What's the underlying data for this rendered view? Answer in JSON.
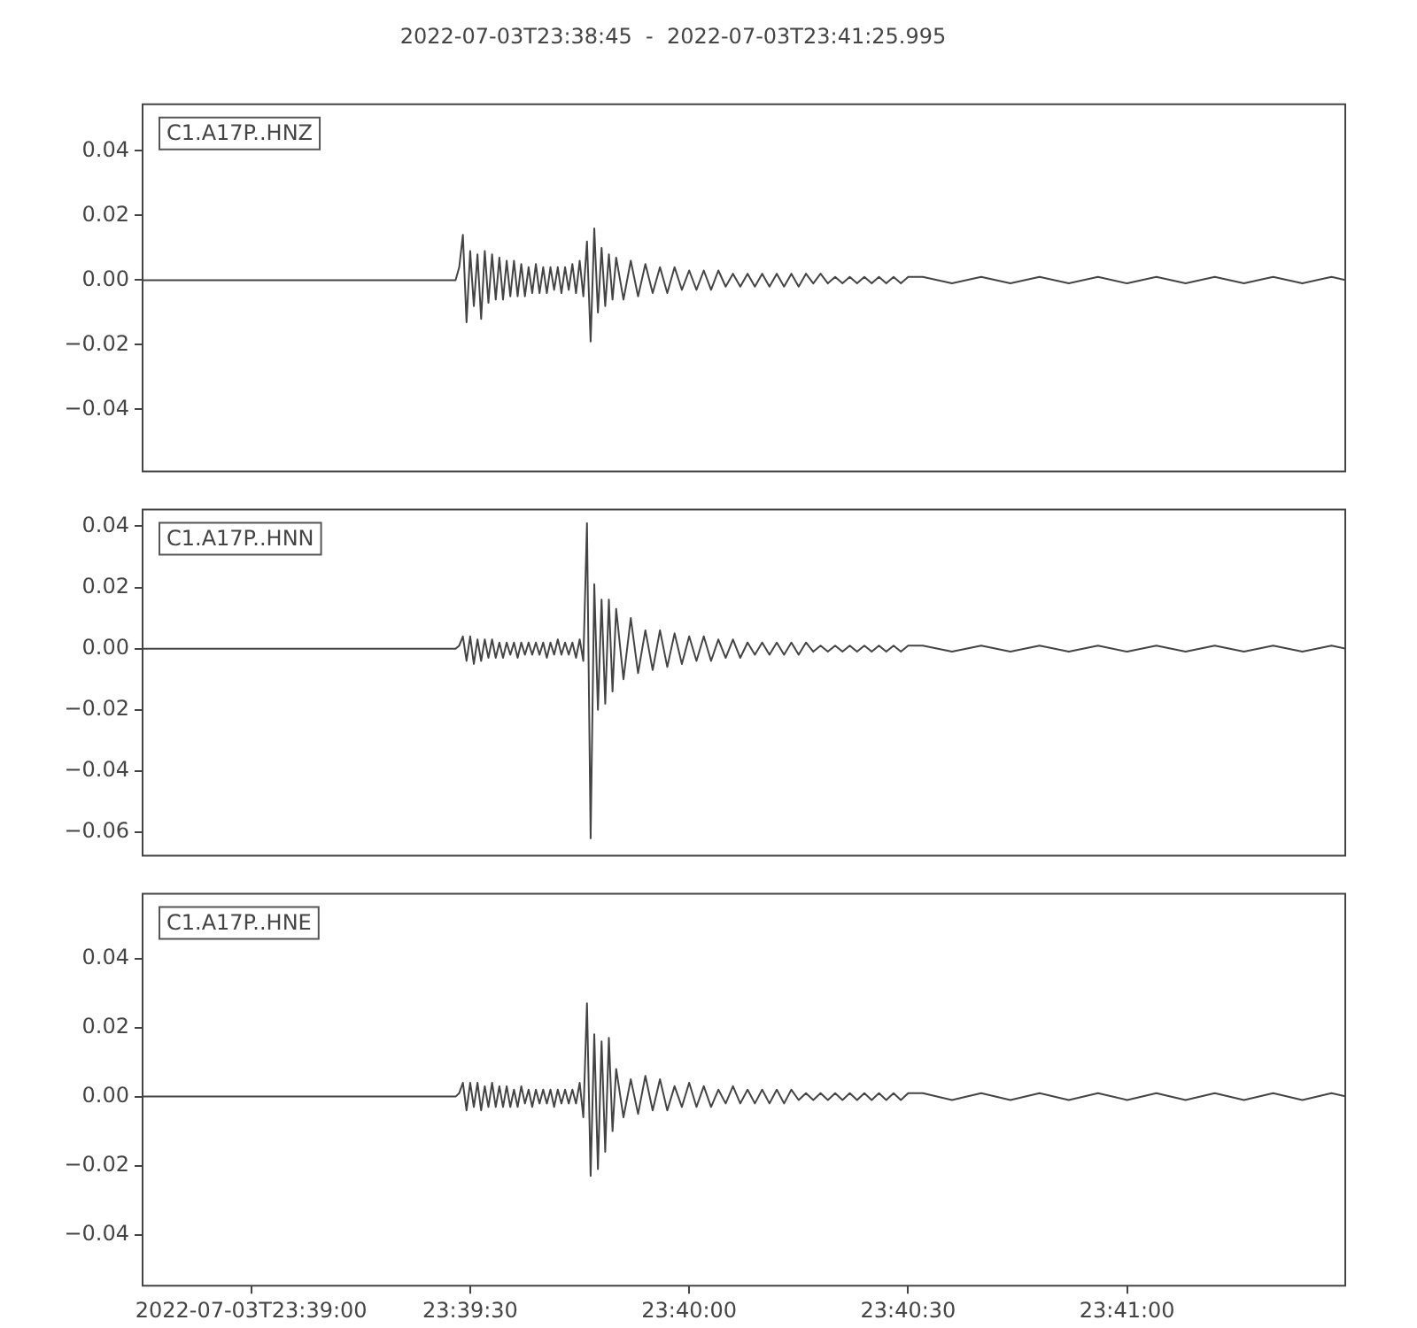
{
  "chart_data": [
    {
      "type": "line",
      "title": "2022-07-03T23:38:45  -  2022-07-03T23:41:25.995",
      "annotations": [
        "C1.A17P..HNZ"
      ],
      "grid": false,
      "legend": false,
      "marker": "none",
      "tick_labels": "y",
      "x": [
        "2022-07-03T23:38:45",
        "2022-07-03T23:39:00",
        "2022-07-03T23:39:15",
        "2022-07-03T23:39:28",
        "2022-07-03T23:39:28.5",
        "2022-07-03T23:39:29",
        "2022-07-03T23:39:29.5",
        "2022-07-03T23:39:30",
        "2022-07-03T23:39:30.5",
        "2022-07-03T23:39:31",
        "2022-07-03T23:39:31.5",
        "2022-07-03T23:39:32",
        "2022-07-03T23:39:32.5",
        "2022-07-03T23:39:33",
        "2022-07-03T23:39:33.5",
        "2022-07-03T23:39:34",
        "2022-07-03T23:39:34.5",
        "2022-07-03T23:39:35",
        "2022-07-03T23:39:35.5",
        "2022-07-03T23:39:36",
        "2022-07-03T23:39:36.5",
        "2022-07-03T23:39:37",
        "2022-07-03T23:39:37.5",
        "2022-07-03T23:39:38",
        "2022-07-03T23:39:38.5",
        "2022-07-03T23:39:39",
        "2022-07-03T23:39:39.5",
        "2022-07-03T23:39:40",
        "2022-07-03T23:39:40.5",
        "2022-07-03T23:39:41",
        "2022-07-03T23:39:41.5",
        "2022-07-03T23:39:42",
        "2022-07-03T23:39:42.5",
        "2022-07-03T23:39:43",
        "2022-07-03T23:39:43.5",
        "2022-07-03T23:39:44",
        "2022-07-03T23:39:44.5",
        "2022-07-03T23:39:45",
        "2022-07-03T23:39:45.5",
        "2022-07-03T23:39:46",
        "2022-07-03T23:39:46.5",
        "2022-07-03T23:39:47",
        "2022-07-03T23:39:47.5",
        "2022-07-03T23:39:48",
        "2022-07-03T23:39:48.5",
        "2022-07-03T23:39:49",
        "2022-07-03T23:39:49.5",
        "2022-07-03T23:39:50",
        "2022-07-03T23:39:51",
        "2022-07-03T23:39:52",
        "2022-07-03T23:39:53",
        "2022-07-03T23:39:54",
        "2022-07-03T23:39:55",
        "2022-07-03T23:39:56",
        "2022-07-03T23:39:57",
        "2022-07-03T23:39:58",
        "2022-07-03T23:39:59",
        "2022-07-03T23:40:00",
        "2022-07-03T23:40:01",
        "2022-07-03T23:40:02",
        "2022-07-03T23:40:03",
        "2022-07-03T23:40:04",
        "2022-07-03T23:40:05",
        "2022-07-03T23:40:06",
        "2022-07-03T23:40:07",
        "2022-07-03T23:40:08",
        "2022-07-03T23:40:09",
        "2022-07-03T23:40:10",
        "2022-07-03T23:40:11",
        "2022-07-03T23:40:12",
        "2022-07-03T23:40:13",
        "2022-07-03T23:40:14",
        "2022-07-03T23:40:15",
        "2022-07-03T23:40:16",
        "2022-07-03T23:40:17",
        "2022-07-03T23:40:18",
        "2022-07-03T23:40:19",
        "2022-07-03T23:40:20",
        "2022-07-03T23:40:21",
        "2022-07-03T23:40:22",
        "2022-07-03T23:40:23",
        "2022-07-03T23:40:24",
        "2022-07-03T23:40:25",
        "2022-07-03T23:40:26",
        "2022-07-03T23:40:27",
        "2022-07-03T23:40:28",
        "2022-07-03T23:40:29",
        "2022-07-03T23:40:30",
        "2022-07-03T23:40:32",
        "2022-07-03T23:40:36",
        "2022-07-03T23:40:40",
        "2022-07-03T23:40:44",
        "2022-07-03T23:40:48",
        "2022-07-03T23:40:52",
        "2022-07-03T23:40:56",
        "2022-07-03T23:41:00",
        "2022-07-03T23:41:04",
        "2022-07-03T23:41:08",
        "2022-07-03T23:41:12",
        "2022-07-03T23:41:16",
        "2022-07-03T23:41:20",
        "2022-07-03T23:41:24",
        "2022-07-03T23:41:28",
        "2022-07-03T23:41:30"
      ],
      "series": [
        {
          "color": "#444444",
          "values": [
            0,
            0,
            0,
            0,
            0.004,
            0.014,
            -0.013,
            0.009,
            -0.008,
            0.008,
            -0.012,
            0.009,
            -0.007,
            0.008,
            -0.006,
            0.007,
            -0.006,
            0.006,
            -0.005,
            0.006,
            -0.005,
            0.005,
            -0.005,
            0.004,
            -0.004,
            0.005,
            -0.004,
            0.004,
            -0.004,
            0.004,
            -0.003,
            0.004,
            -0.004,
            0.004,
            -0.003,
            0.005,
            -0.004,
            0.006,
            -0.005,
            0.012,
            -0.019,
            0.016,
            -0.01,
            0.01,
            -0.008,
            0.008,
            -0.006,
            0.007,
            -0.006,
            0.006,
            -0.005,
            0.005,
            -0.004,
            0.004,
            -0.004,
            0.004,
            -0.003,
            0.003,
            -0.003,
            0.003,
            -0.003,
            0.003,
            -0.002,
            0.002,
            -0.002,
            0.002,
            -0.002,
            0.002,
            -0.002,
            0.002,
            -0.002,
            0.002,
            -0.002,
            0.002,
            -0.001,
            0.002,
            -0.001,
            0.001,
            -0.001,
            0.001,
            -0.001,
            0.001,
            -0.001,
            0.001,
            -0.001,
            0.001,
            -0.001,
            0.001,
            0.001,
            -0.001,
            0.001,
            -0.001,
            0.001,
            -0.001,
            0.001,
            -0.001,
            0.001,
            -0.001,
            0.001,
            -0.001,
            0.001,
            -0.001,
            0.001,
            0
          ]
        }
      ],
      "xlim": [
        "2022-07-03T23:38:45",
        "2022-07-03T23:41:30"
      ],
      "ylim": [
        -0.0595,
        0.0547
      ],
      "yticks": [
        {
          "value": -0.04,
          "label": "−0.04"
        },
        {
          "value": -0.02,
          "label": "−0.02"
        },
        {
          "value": 0,
          "label": "0.00"
        },
        {
          "value": 0.02,
          "label": "0.02"
        },
        {
          "value": 0.04,
          "label": "0.04"
        }
      ]
    },
    {
      "type": "line",
      "annotations": [
        "C1.A17P..HNN"
      ],
      "grid": false,
      "legend": false,
      "marker": "none",
      "tick_labels": "y",
      "x": [
        "2022-07-03T23:38:45",
        "2022-07-03T23:39:00",
        "2022-07-03T23:39:15",
        "2022-07-03T23:39:28",
        "2022-07-03T23:39:28.5",
        "2022-07-03T23:39:29",
        "2022-07-03T23:39:29.5",
        "2022-07-03T23:39:30",
        "2022-07-03T23:39:30.5",
        "2022-07-03T23:39:31",
        "2022-07-03T23:39:31.5",
        "2022-07-03T23:39:32",
        "2022-07-03T23:39:32.5",
        "2022-07-03T23:39:33",
        "2022-07-03T23:39:33.5",
        "2022-07-03T23:39:34",
        "2022-07-03T23:39:34.5",
        "2022-07-03T23:39:35",
        "2022-07-03T23:39:35.5",
        "2022-07-03T23:39:36",
        "2022-07-03T23:39:36.5",
        "2022-07-03T23:39:37",
        "2022-07-03T23:39:37.5",
        "2022-07-03T23:39:38",
        "2022-07-03T23:39:38.5",
        "2022-07-03T23:39:39",
        "2022-07-03T23:39:39.5",
        "2022-07-03T23:39:40",
        "2022-07-03T23:39:40.5",
        "2022-07-03T23:39:41",
        "2022-07-03T23:39:41.5",
        "2022-07-03T23:39:42",
        "2022-07-03T23:39:42.5",
        "2022-07-03T23:39:43",
        "2022-07-03T23:39:43.5",
        "2022-07-03T23:39:44",
        "2022-07-03T23:39:44.5",
        "2022-07-03T23:39:45",
        "2022-07-03T23:39:45.5",
        "2022-07-03T23:39:46",
        "2022-07-03T23:39:46.5",
        "2022-07-03T23:39:47",
        "2022-07-03T23:39:47.5",
        "2022-07-03T23:39:48",
        "2022-07-03T23:39:48.5",
        "2022-07-03T23:39:49",
        "2022-07-03T23:39:49.5",
        "2022-07-03T23:39:50",
        "2022-07-03T23:39:51",
        "2022-07-03T23:39:52",
        "2022-07-03T23:39:53",
        "2022-07-03T23:39:54",
        "2022-07-03T23:39:55",
        "2022-07-03T23:39:56",
        "2022-07-03T23:39:57",
        "2022-07-03T23:39:58",
        "2022-07-03T23:39:59",
        "2022-07-03T23:40:00",
        "2022-07-03T23:40:01",
        "2022-07-03T23:40:02",
        "2022-07-03T23:40:03",
        "2022-07-03T23:40:04",
        "2022-07-03T23:40:05",
        "2022-07-03T23:40:06",
        "2022-07-03T23:40:07",
        "2022-07-03T23:40:08",
        "2022-07-03T23:40:09",
        "2022-07-03T23:40:10",
        "2022-07-03T23:40:11",
        "2022-07-03T23:40:12",
        "2022-07-03T23:40:13",
        "2022-07-03T23:40:14",
        "2022-07-03T23:40:15",
        "2022-07-03T23:40:16",
        "2022-07-03T23:40:17",
        "2022-07-03T23:40:18",
        "2022-07-03T23:40:19",
        "2022-07-03T23:40:20",
        "2022-07-03T23:40:21",
        "2022-07-03T23:40:22",
        "2022-07-03T23:40:23",
        "2022-07-03T23:40:24",
        "2022-07-03T23:40:25",
        "2022-07-03T23:40:26",
        "2022-07-03T23:40:27",
        "2022-07-03T23:40:28",
        "2022-07-03T23:40:29",
        "2022-07-03T23:40:30",
        "2022-07-03T23:40:32",
        "2022-07-03T23:40:36",
        "2022-07-03T23:40:40",
        "2022-07-03T23:40:44",
        "2022-07-03T23:40:48",
        "2022-07-03T23:40:52",
        "2022-07-03T23:40:56",
        "2022-07-03T23:41:00",
        "2022-07-03T23:41:04",
        "2022-07-03T23:41:08",
        "2022-07-03T23:41:12",
        "2022-07-03T23:41:16",
        "2022-07-03T23:41:20",
        "2022-07-03T23:41:24",
        "2022-07-03T23:41:28",
        "2022-07-03T23:41:30"
      ],
      "series": [
        {
          "color": "#444444",
          "values": [
            0,
            0,
            0,
            0,
            0.001,
            0.004,
            -0.004,
            0.004,
            -0.005,
            0.003,
            -0.004,
            0.003,
            -0.003,
            0.003,
            -0.003,
            0.002,
            -0.003,
            0.002,
            -0.002,
            0.002,
            -0.003,
            0.002,
            -0.002,
            0.002,
            -0.002,
            0.002,
            -0.002,
            0.002,
            -0.003,
            0.002,
            -0.002,
            0.003,
            -0.002,
            0.002,
            -0.002,
            0.002,
            -0.003,
            0.003,
            -0.004,
            0.041,
            -0.062,
            0.021,
            -0.02,
            0.016,
            -0.018,
            0.016,
            -0.014,
            0.013,
            -0.01,
            0.01,
            -0.008,
            0.006,
            -0.007,
            0.006,
            -0.006,
            0.005,
            -0.005,
            0.004,
            -0.004,
            0.004,
            -0.004,
            0.003,
            -0.003,
            0.003,
            -0.003,
            0.002,
            -0.002,
            0.002,
            -0.002,
            0.002,
            -0.002,
            0.002,
            -0.002,
            0.002,
            -0.001,
            0.001,
            -0.001,
            0.001,
            -0.001,
            0.001,
            -0.001,
            0.001,
            -0.001,
            0.001,
            -0.001,
            0.001,
            -0.001,
            0.001,
            0.001,
            -0.001,
            0.001,
            -0.001,
            0.001,
            -0.001,
            0.001,
            -0.001,
            0.001,
            -0.001,
            0.001,
            -0.001,
            0.001,
            -0.001,
            0.001,
            0
          ]
        }
      ],
      "xlim": [
        "2022-07-03T23:38:45",
        "2022-07-03T23:41:30"
      ],
      "ylim": [
        -0.068,
        0.0458
      ],
      "yticks": [
        {
          "value": -0.06,
          "label": "−0.06"
        },
        {
          "value": -0.04,
          "label": "−0.04"
        },
        {
          "value": -0.02,
          "label": "−0.02"
        },
        {
          "value": 0,
          "label": "0.00"
        },
        {
          "value": 0.02,
          "label": "0.02"
        },
        {
          "value": 0.04,
          "label": "0.04"
        }
      ]
    },
    {
      "type": "line",
      "annotations": [
        "C1.A17P..HNE"
      ],
      "grid": false,
      "legend": false,
      "marker": "none",
      "x": [
        "2022-07-03T23:38:45",
        "2022-07-03T23:39:00",
        "2022-07-03T23:39:15",
        "2022-07-03T23:39:28",
        "2022-07-03T23:39:28.5",
        "2022-07-03T23:39:29",
        "2022-07-03T23:39:29.5",
        "2022-07-03T23:39:30",
        "2022-07-03T23:39:30.5",
        "2022-07-03T23:39:31",
        "2022-07-03T23:39:31.5",
        "2022-07-03T23:39:32",
        "2022-07-03T23:39:32.5",
        "2022-07-03T23:39:33",
        "2022-07-03T23:39:33.5",
        "2022-07-03T23:39:34",
        "2022-07-03T23:39:34.5",
        "2022-07-03T23:39:35",
        "2022-07-03T23:39:35.5",
        "2022-07-03T23:39:36",
        "2022-07-03T23:39:36.5",
        "2022-07-03T23:39:37",
        "2022-07-03T23:39:37.5",
        "2022-07-03T23:39:38",
        "2022-07-03T23:39:38.5",
        "2022-07-03T23:39:39",
        "2022-07-03T23:39:39.5",
        "2022-07-03T23:39:40",
        "2022-07-03T23:39:40.5",
        "2022-07-03T23:39:41",
        "2022-07-03T23:39:41.5",
        "2022-07-03T23:39:42",
        "2022-07-03T23:39:42.5",
        "2022-07-03T23:39:43",
        "2022-07-03T23:39:43.5",
        "2022-07-03T23:39:44",
        "2022-07-03T23:39:44.5",
        "2022-07-03T23:39:45",
        "2022-07-03T23:39:45.5",
        "2022-07-03T23:39:46",
        "2022-07-03T23:39:46.5",
        "2022-07-03T23:39:47",
        "2022-07-03T23:39:47.5",
        "2022-07-03T23:39:48",
        "2022-07-03T23:39:48.5",
        "2022-07-03T23:39:49",
        "2022-07-03T23:39:49.5",
        "2022-07-03T23:39:50",
        "2022-07-03T23:39:51",
        "2022-07-03T23:39:52",
        "2022-07-03T23:39:53",
        "2022-07-03T23:39:54",
        "2022-07-03T23:39:55",
        "2022-07-03T23:39:56",
        "2022-07-03T23:39:57",
        "2022-07-03T23:39:58",
        "2022-07-03T23:39:59",
        "2022-07-03T23:40:00",
        "2022-07-03T23:40:01",
        "2022-07-03T23:40:02",
        "2022-07-03T23:40:03",
        "2022-07-03T23:40:04",
        "2022-07-03T23:40:05",
        "2022-07-03T23:40:06",
        "2022-07-03T23:40:07",
        "2022-07-03T23:40:08",
        "2022-07-03T23:40:09",
        "2022-07-03T23:40:10",
        "2022-07-03T23:40:11",
        "2022-07-03T23:40:12",
        "2022-07-03T23:40:13",
        "2022-07-03T23:40:14",
        "2022-07-03T23:40:15",
        "2022-07-03T23:40:16",
        "2022-07-03T23:40:17",
        "2022-07-03T23:40:18",
        "2022-07-03T23:40:19",
        "2022-07-03T23:40:20",
        "2022-07-03T23:40:21",
        "2022-07-03T23:40:22",
        "2022-07-03T23:40:23",
        "2022-07-03T23:40:24",
        "2022-07-03T23:40:25",
        "2022-07-03T23:40:26",
        "2022-07-03T23:40:27",
        "2022-07-03T23:40:28",
        "2022-07-03T23:40:29",
        "2022-07-03T23:40:30",
        "2022-07-03T23:40:32",
        "2022-07-03T23:40:36",
        "2022-07-03T23:40:40",
        "2022-07-03T23:40:44",
        "2022-07-03T23:40:48",
        "2022-07-03T23:40:52",
        "2022-07-03T23:40:56",
        "2022-07-03T23:41:00",
        "2022-07-03T23:41:04",
        "2022-07-03T23:41:08",
        "2022-07-03T23:41:12",
        "2022-07-03T23:41:16",
        "2022-07-03T23:41:20",
        "2022-07-03T23:41:24",
        "2022-07-03T23:41:28",
        "2022-07-03T23:41:30"
      ],
      "series": [
        {
          "color": "#444444",
          "values": [
            0,
            0,
            0,
            0,
            0.001,
            0.004,
            -0.004,
            0.004,
            -0.003,
            0.004,
            -0.004,
            0.003,
            -0.003,
            0.004,
            -0.003,
            0.003,
            -0.003,
            0.003,
            -0.003,
            0.002,
            -0.003,
            0.003,
            -0.002,
            0.002,
            -0.003,
            0.002,
            -0.002,
            0.002,
            -0.002,
            0.002,
            -0.003,
            0.002,
            -0.002,
            0.002,
            -0.002,
            0.002,
            -0.002,
            0.004,
            -0.006,
            0.027,
            -0.023,
            0.018,
            -0.021,
            0.016,
            -0.016,
            0.017,
            -0.01,
            0.008,
            -0.006,
            0.005,
            -0.005,
            0.006,
            -0.004,
            0.005,
            -0.004,
            0.003,
            -0.003,
            0.004,
            -0.003,
            0.003,
            -0.003,
            0.002,
            -0.002,
            0.003,
            -0.002,
            0.002,
            -0.002,
            0.002,
            -0.002,
            0.002,
            -0.002,
            0.002,
            -0.001,
            0.001,
            -0.001,
            0.001,
            -0.001,
            0.001,
            -0.001,
            0.001,
            -0.001,
            0.001,
            -0.001,
            0.001,
            -0.001,
            0.001,
            -0.001,
            0.001,
            0.001,
            -0.001,
            0.001,
            -0.001,
            0.001,
            -0.001,
            0.001,
            -0.001,
            0.001,
            -0.001,
            0.001,
            -0.001,
            0.001,
            -0.001,
            0.001,
            0
          ]
        }
      ],
      "xlim": [
        "2022-07-03T23:38:45",
        "2022-07-03T23:41:30"
      ],
      "ylim": [
        -0.055,
        0.059
      ],
      "xticks": [
        {
          "value": "2022-07-03T23:39:00",
          "label": "2022-07-03T23:39:00"
        },
        {
          "value": "2022-07-03T23:39:30",
          "label": "23:39:30"
        },
        {
          "value": "2022-07-03T23:40:00",
          "label": "23:40:00"
        },
        {
          "value": "2022-07-03T23:40:30",
          "label": "23:40:30"
        },
        {
          "value": "2022-07-03T23:41:00",
          "label": "23:41:00"
        }
      ],
      "yticks": [
        {
          "value": -0.04,
          "label": "−0.04"
        },
        {
          "value": -0.02,
          "label": "−0.02"
        },
        {
          "value": 0,
          "label": "0.00"
        },
        {
          "value": 0.02,
          "label": "0.02"
        },
        {
          "value": 0.04,
          "label": "0.04"
        }
      ]
    }
  ]
}
